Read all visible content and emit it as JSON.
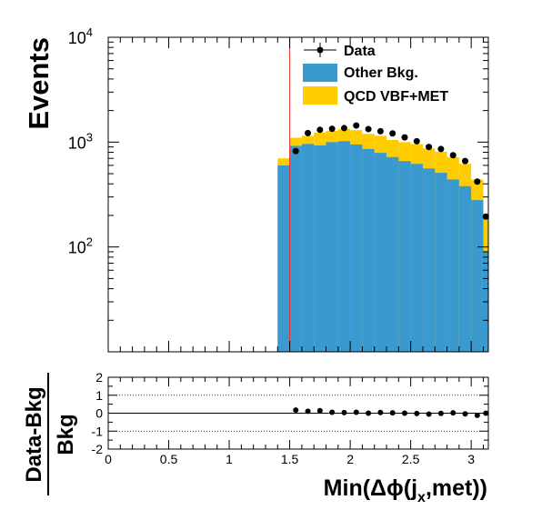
{
  "chart_data": {
    "type": "histogram",
    "main": {
      "ylabel": "Events",
      "ylog": true,
      "ylim": [
        10,
        10000
      ],
      "ytick_labels": [
        {
          "value": 100,
          "base": "10",
          "exp": "2"
        },
        {
          "value": 1000,
          "base": "10",
          "exp": "3"
        },
        {
          "value": 10000,
          "base": "10",
          "exp": "4"
        }
      ],
      "xlim": [
        0,
        3.1416
      ],
      "bin_width": 0.1,
      "bin_centers": [
        1.45,
        1.55,
        1.65,
        1.75,
        1.85,
        1.95,
        2.05,
        2.15,
        2.25,
        2.35,
        2.45,
        2.55,
        2.65,
        2.75,
        2.85,
        2.95,
        3.05,
        3.1208
      ],
      "bin_edges_low": [
        1.4,
        1.5,
        1.6,
        1.7,
        1.8,
        1.9,
        2.0,
        2.1,
        2.2,
        2.3,
        2.4,
        2.5,
        2.6,
        2.7,
        2.8,
        2.9,
        3.0,
        3.1
      ],
      "bin_edges_high": [
        1.5,
        1.6,
        1.7,
        1.8,
        1.9,
        2.0,
        2.1,
        2.2,
        2.3,
        2.4,
        2.5,
        2.6,
        2.7,
        2.8,
        2.9,
        3.0,
        3.1,
        3.1416
      ],
      "series": [
        {
          "name": "Other Bkg.",
          "color": "#3a9ad0",
          "values": [
            600,
            920,
            960,
            930,
            1000,
            1020,
            950,
            860,
            790,
            720,
            660,
            620,
            560,
            510,
            440,
            380,
            280,
            90
          ]
        },
        {
          "name": "QCD VBF+MET",
          "color": "#ffcc00",
          "values": [
            700,
            1100,
            1150,
            1230,
            1280,
            1330,
            1300,
            1200,
            1150,
            1050,
            1000,
            960,
            870,
            810,
            720,
            620,
            440,
            190
          ]
        }
      ],
      "data": {
        "name": "Data",
        "x": [
          1.55,
          1.65,
          1.75,
          1.85,
          1.95,
          2.05,
          2.15,
          2.25,
          2.35,
          2.45,
          2.55,
          2.65,
          2.75,
          2.85,
          2.95,
          3.05,
          3.1208
        ],
        "y": [
          820,
          1220,
          1310,
          1340,
          1360,
          1440,
          1330,
          1270,
          1210,
          1110,
          1020,
          900,
          860,
          750,
          660,
          420,
          195
        ]
      },
      "vline": {
        "x": 1.5,
        "color": "#e8312f"
      }
    },
    "ratio": {
      "ylabel_num": "Data-Bkg",
      "ylabel_den": "Bkg",
      "ylim": [
        -2,
        2
      ],
      "yticks": [
        "2",
        "1",
        "0",
        "-1",
        "-2"
      ],
      "xlabel": "Min(Δϕ(j",
      "xlabel_sub": "x",
      "xlabel_end": ",met))",
      "xticks": [
        "0",
        "0.5",
        "1",
        "1.5",
        "2",
        "2.5",
        "3"
      ],
      "x": [
        1.55,
        1.65,
        1.75,
        1.85,
        1.95,
        2.05,
        2.15,
        2.25,
        2.35,
        2.45,
        2.55,
        2.65,
        2.75,
        2.85,
        2.95,
        3.05,
        3.1208
      ],
      "y": [
        0.17,
        0.11,
        0.14,
        0.05,
        0.03,
        0.05,
        0.0,
        0.04,
        0.02,
        0.0,
        -0.02,
        -0.05,
        -0.01,
        0.02,
        -0.04,
        -0.12,
        0.0
      ]
    },
    "legend": {
      "position": "top-right",
      "entries": [
        "Data",
        "Other Bkg.",
        "QCD VBF+MET"
      ]
    }
  }
}
